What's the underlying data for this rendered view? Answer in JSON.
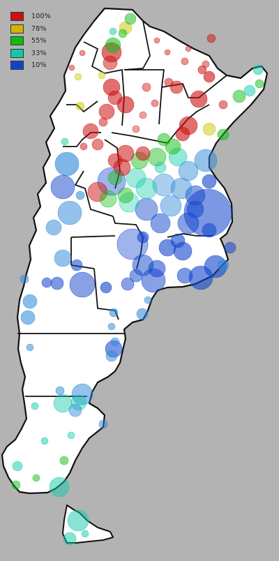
{
  "legend": {
    "items": [
      {
        "label": "100%",
        "color": "#cc1111",
        "icon": "legend-swatch-red"
      },
      {
        "label": "78%",
        "color": "#d2b400",
        "icon": "legend-swatch-yellow"
      },
      {
        "label": "55%",
        "color": "#11bb11",
        "icon": "legend-swatch-green"
      },
      {
        "label": "33%",
        "color": "#11c9aa",
        "icon": "legend-swatch-teal"
      },
      {
        "label": "10%",
        "color": "#1144cc",
        "icon": "legend-swatch-blue"
      }
    ]
  },
  "colors": {
    "background": "#b3b3b3",
    "land": "#ffffff",
    "border": "#111111"
  }
}
